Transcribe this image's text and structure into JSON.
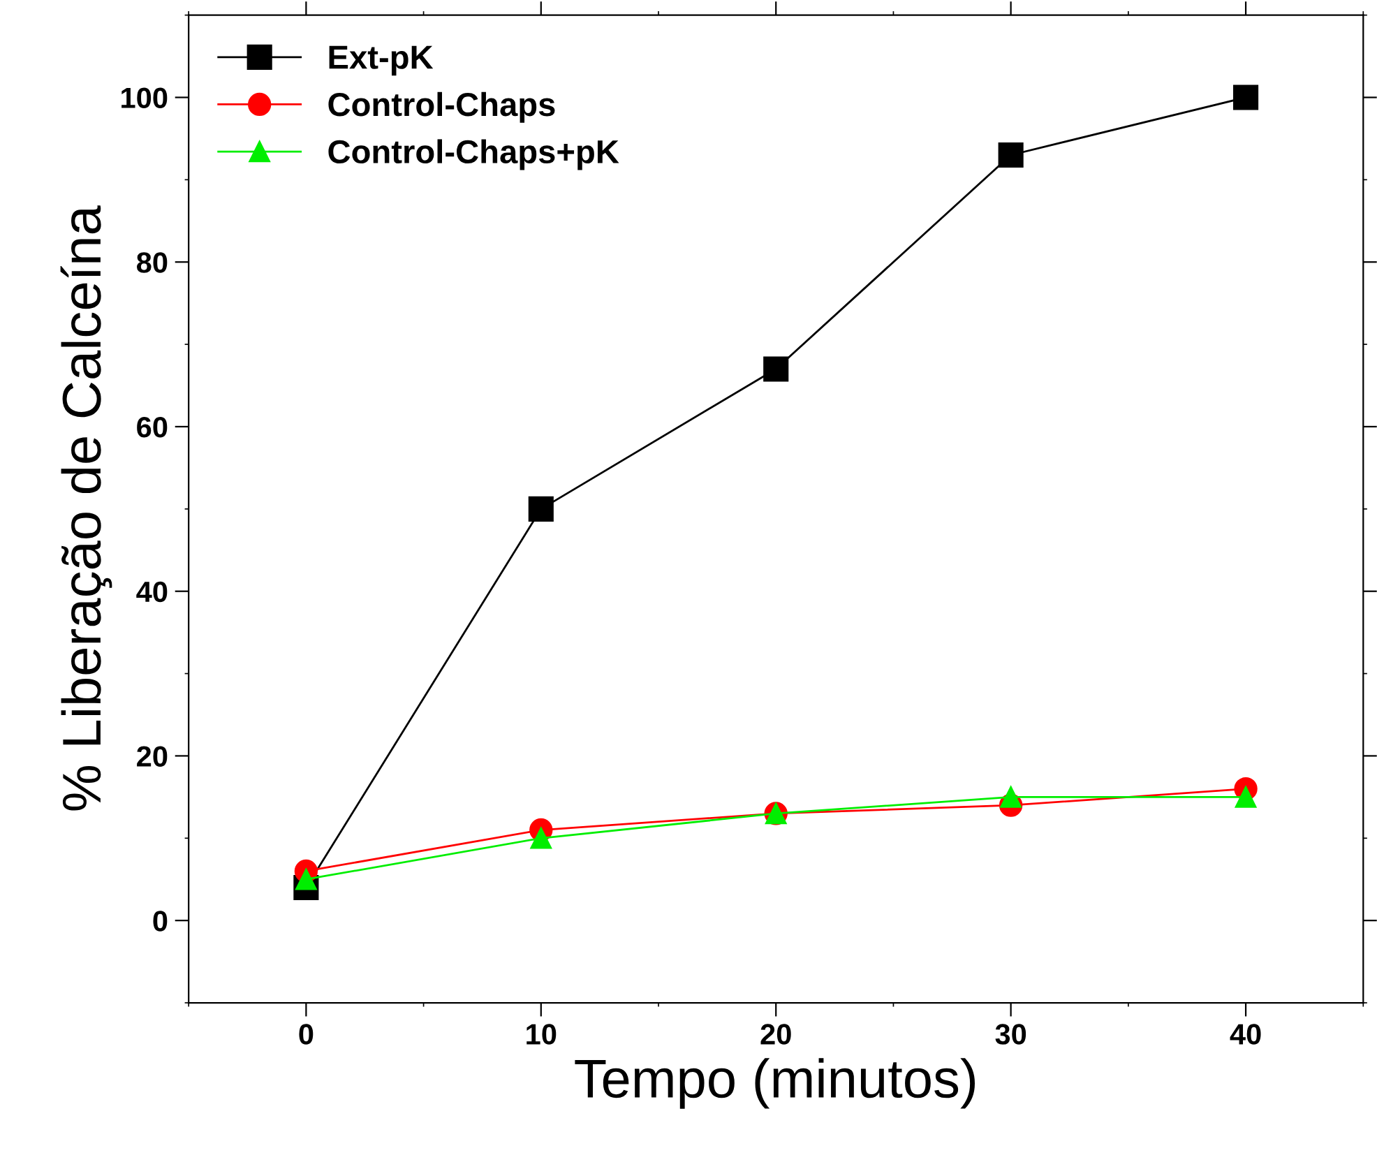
{
  "chart_data": {
    "type": "line",
    "xlabel": "Tempo (minutos)",
    "ylabel": "% Liberação de Calceína",
    "x": [
      0,
      10,
      20,
      30,
      40
    ],
    "series": [
      {
        "name": "Ext-pK",
        "color": "#000000",
        "marker": "square",
        "values": [
          4,
          50,
          67,
          93,
          100
        ]
      },
      {
        "name": "Control-Chaps",
        "color": "#ff0000",
        "marker": "circle",
        "values": [
          6,
          11,
          13,
          14,
          16
        ]
      },
      {
        "name": "Control-Chaps+pK",
        "color": "#00ee00",
        "marker": "triangle",
        "values": [
          5,
          10,
          13,
          15,
          15
        ]
      }
    ],
    "xlim": [
      -5,
      45
    ],
    "ylim": [
      -10,
      110
    ],
    "xticks": [
      0,
      10,
      20,
      30,
      40
    ],
    "yticks": [
      0,
      20,
      40,
      60,
      80,
      100
    ],
    "grid": false,
    "legend": "top left",
    "line_style": "solid"
  }
}
